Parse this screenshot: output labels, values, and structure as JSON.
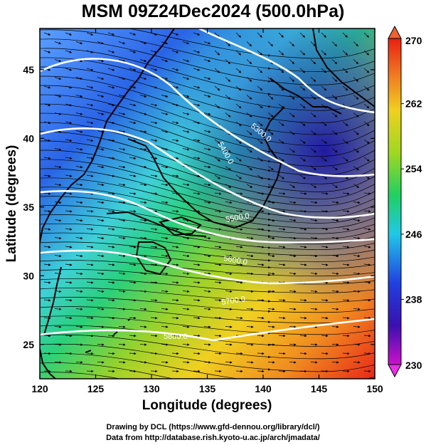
{
  "title": "MSM 09Z24Dec2024 (500.0hPa)",
  "footer": {
    "line1": "Drawing by DCL (https://www.gfd-dennou.org/library/dcl/)",
    "line2": "Data from http://database.rish.kyoto-u.ac.jp/arch/jmadata/"
  },
  "map": {
    "xlabel": "Longitude (degrees)",
    "ylabel": "Latitude  (degrees)",
    "lon_range": [
      120,
      150
    ],
    "lat_range": [
      22.5,
      48
    ],
    "x_ticks": [
      "120",
      "125",
      "130",
      "135",
      "140",
      "145",
      "150"
    ],
    "y_ticks": [
      "25",
      "30",
      "35",
      "40",
      "45"
    ],
    "x_tick_values": [
      120,
      125,
      130,
      135,
      140,
      145,
      150
    ],
    "y_tick_values": [
      25,
      30,
      35,
      40,
      45
    ],
    "contour_labels": [
      "5300.0",
      "5400.0",
      "5500.0",
      "5600.0",
      "5700.0",
      "5800.0"
    ]
  },
  "colorbar": {
    "max_label": "270",
    "min_label": "230",
    "ticks": [
      "262",
      "254",
      "246",
      "238"
    ],
    "tick_values": [
      262,
      254,
      246,
      238
    ],
    "range": [
      230,
      270
    ]
  }
}
